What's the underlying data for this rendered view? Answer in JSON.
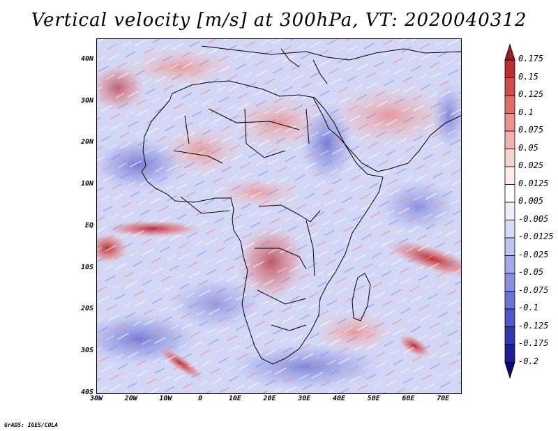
{
  "title": "Vertical velocity [m/s] at 300hPa, VT: 2020040312",
  "credit": "GrADS: IGES/COLA",
  "map": {
    "lon_range": [
      -30,
      75
    ],
    "lat_range": [
      -40,
      45
    ],
    "lat_labels": [
      "40N",
      "30N",
      "20N",
      "10N",
      "EQ",
      "10S",
      "20S",
      "30S",
      "40S"
    ],
    "lat_values": [
      40,
      30,
      20,
      10,
      0,
      -10,
      -20,
      -30,
      -40
    ],
    "lon_labels": [
      "30W",
      "20W",
      "10W",
      "0",
      "10E",
      "20E",
      "30E",
      "40E",
      "50E",
      "60E",
      "70E"
    ],
    "lon_values": [
      -30,
      -20,
      -10,
      0,
      10,
      20,
      30,
      40,
      50,
      60,
      70
    ],
    "background_color": "#dfe3fb",
    "land_outline_color": "#000000"
  },
  "colorbar": {
    "labels": [
      "0.175",
      "0.15",
      "0.125",
      "0.1",
      "0.075",
      "0.05",
      "0.025",
      "0.0125",
      "0.005",
      "-0.005",
      "-0.0125",
      "-0.025",
      "-0.05",
      "-0.075",
      "-0.1",
      "-0.125",
      "-0.175",
      "-0.2"
    ],
    "colors": [
      "#a01e26",
      "#b92e34",
      "#cd4b4e",
      "#dd6d6b",
      "#e8918e",
      "#f2b3b0",
      "#f8d2d0",
      "#fcebea",
      "#ffffff",
      "#eceefb",
      "#d7dbf6",
      "#bdc3f0",
      "#a2a9e9",
      "#8790e1",
      "#6b74d6",
      "#4f58c8",
      "#3038b0",
      "#1c1f92",
      "#0c0c70"
    ]
  }
}
